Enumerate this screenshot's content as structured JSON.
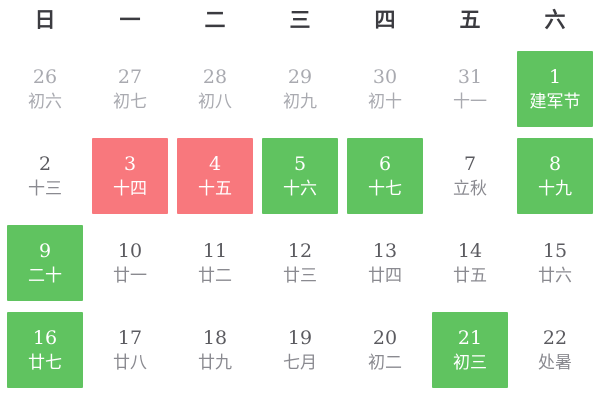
{
  "calendar": {
    "weekdays": [
      "日",
      "一",
      "二",
      "三",
      "四",
      "五",
      "六"
    ],
    "colors": {
      "background": "#ffffff",
      "green_highlight": "#60C360",
      "red_highlight": "#F8787D",
      "header_text": "#3b3b40",
      "day_number_text": "#5b5b60",
      "lunar_text": "#8a8a90",
      "prev_month_text": "#a9aab0",
      "on_highlight_text": "#ffffff"
    },
    "days": [
      {
        "date": "26",
        "lunar": "初六",
        "type": "prev"
      },
      {
        "date": "27",
        "lunar": "初七",
        "type": "prev"
      },
      {
        "date": "28",
        "lunar": "初八",
        "type": "prev"
      },
      {
        "date": "29",
        "lunar": "初九",
        "type": "prev"
      },
      {
        "date": "30",
        "lunar": "初十",
        "type": "prev"
      },
      {
        "date": "31",
        "lunar": "十一",
        "type": "prev"
      },
      {
        "date": "1",
        "lunar": "建军节",
        "type": "green"
      },
      {
        "date": "2",
        "lunar": "十三",
        "type": "normal"
      },
      {
        "date": "3",
        "lunar": "十四",
        "type": "red"
      },
      {
        "date": "4",
        "lunar": "十五",
        "type": "red"
      },
      {
        "date": "5",
        "lunar": "十六",
        "type": "green"
      },
      {
        "date": "6",
        "lunar": "十七",
        "type": "green"
      },
      {
        "date": "7",
        "lunar": "立秋",
        "type": "normal"
      },
      {
        "date": "8",
        "lunar": "十九",
        "type": "green"
      },
      {
        "date": "9",
        "lunar": "二十",
        "type": "green"
      },
      {
        "date": "10",
        "lunar": "廿一",
        "type": "normal"
      },
      {
        "date": "11",
        "lunar": "廿二",
        "type": "normal"
      },
      {
        "date": "12",
        "lunar": "廿三",
        "type": "normal"
      },
      {
        "date": "13",
        "lunar": "廿四",
        "type": "normal"
      },
      {
        "date": "14",
        "lunar": "廿五",
        "type": "normal"
      },
      {
        "date": "15",
        "lunar": "廿六",
        "type": "normal"
      },
      {
        "date": "16",
        "lunar": "廿七",
        "type": "green"
      },
      {
        "date": "17",
        "lunar": "廿八",
        "type": "normal"
      },
      {
        "date": "18",
        "lunar": "廿九",
        "type": "normal"
      },
      {
        "date": "19",
        "lunar": "七月",
        "type": "normal"
      },
      {
        "date": "20",
        "lunar": "初二",
        "type": "normal"
      },
      {
        "date": "21",
        "lunar": "初三",
        "type": "green"
      },
      {
        "date": "22",
        "lunar": "处暑",
        "type": "normal"
      }
    ]
  }
}
